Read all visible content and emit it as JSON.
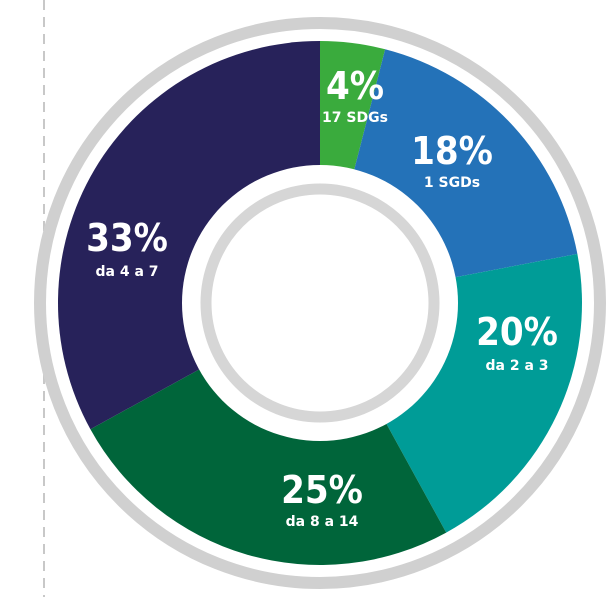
{
  "chart_data": {
    "type": "pie",
    "title": "",
    "colors": {
      "outer_ring": "#d0d0d0",
      "inner_ring": "#d6d6d6",
      "center": "#ffffff",
      "divider": "#c8c8c8"
    },
    "slices": [
      {
        "pct_label": "4%",
        "sub_label": "17 SDGs",
        "value": 4,
        "color": "#3aab3d"
      },
      {
        "pct_label": "18%",
        "sub_label": "1 SGDs",
        "value": 18,
        "color": "#2472b8"
      },
      {
        "pct_label": "20%",
        "sub_label": "da 2 a 3",
        "value": 20,
        "color": "#009c97"
      },
      {
        "pct_label": "25%",
        "sub_label": "da 8 a 14",
        "value": 25,
        "color": "#00653a"
      },
      {
        "pct_label": "33%",
        "sub_label": "da 4 a 7",
        "value": 33,
        "color": "#27225a"
      }
    ]
  }
}
